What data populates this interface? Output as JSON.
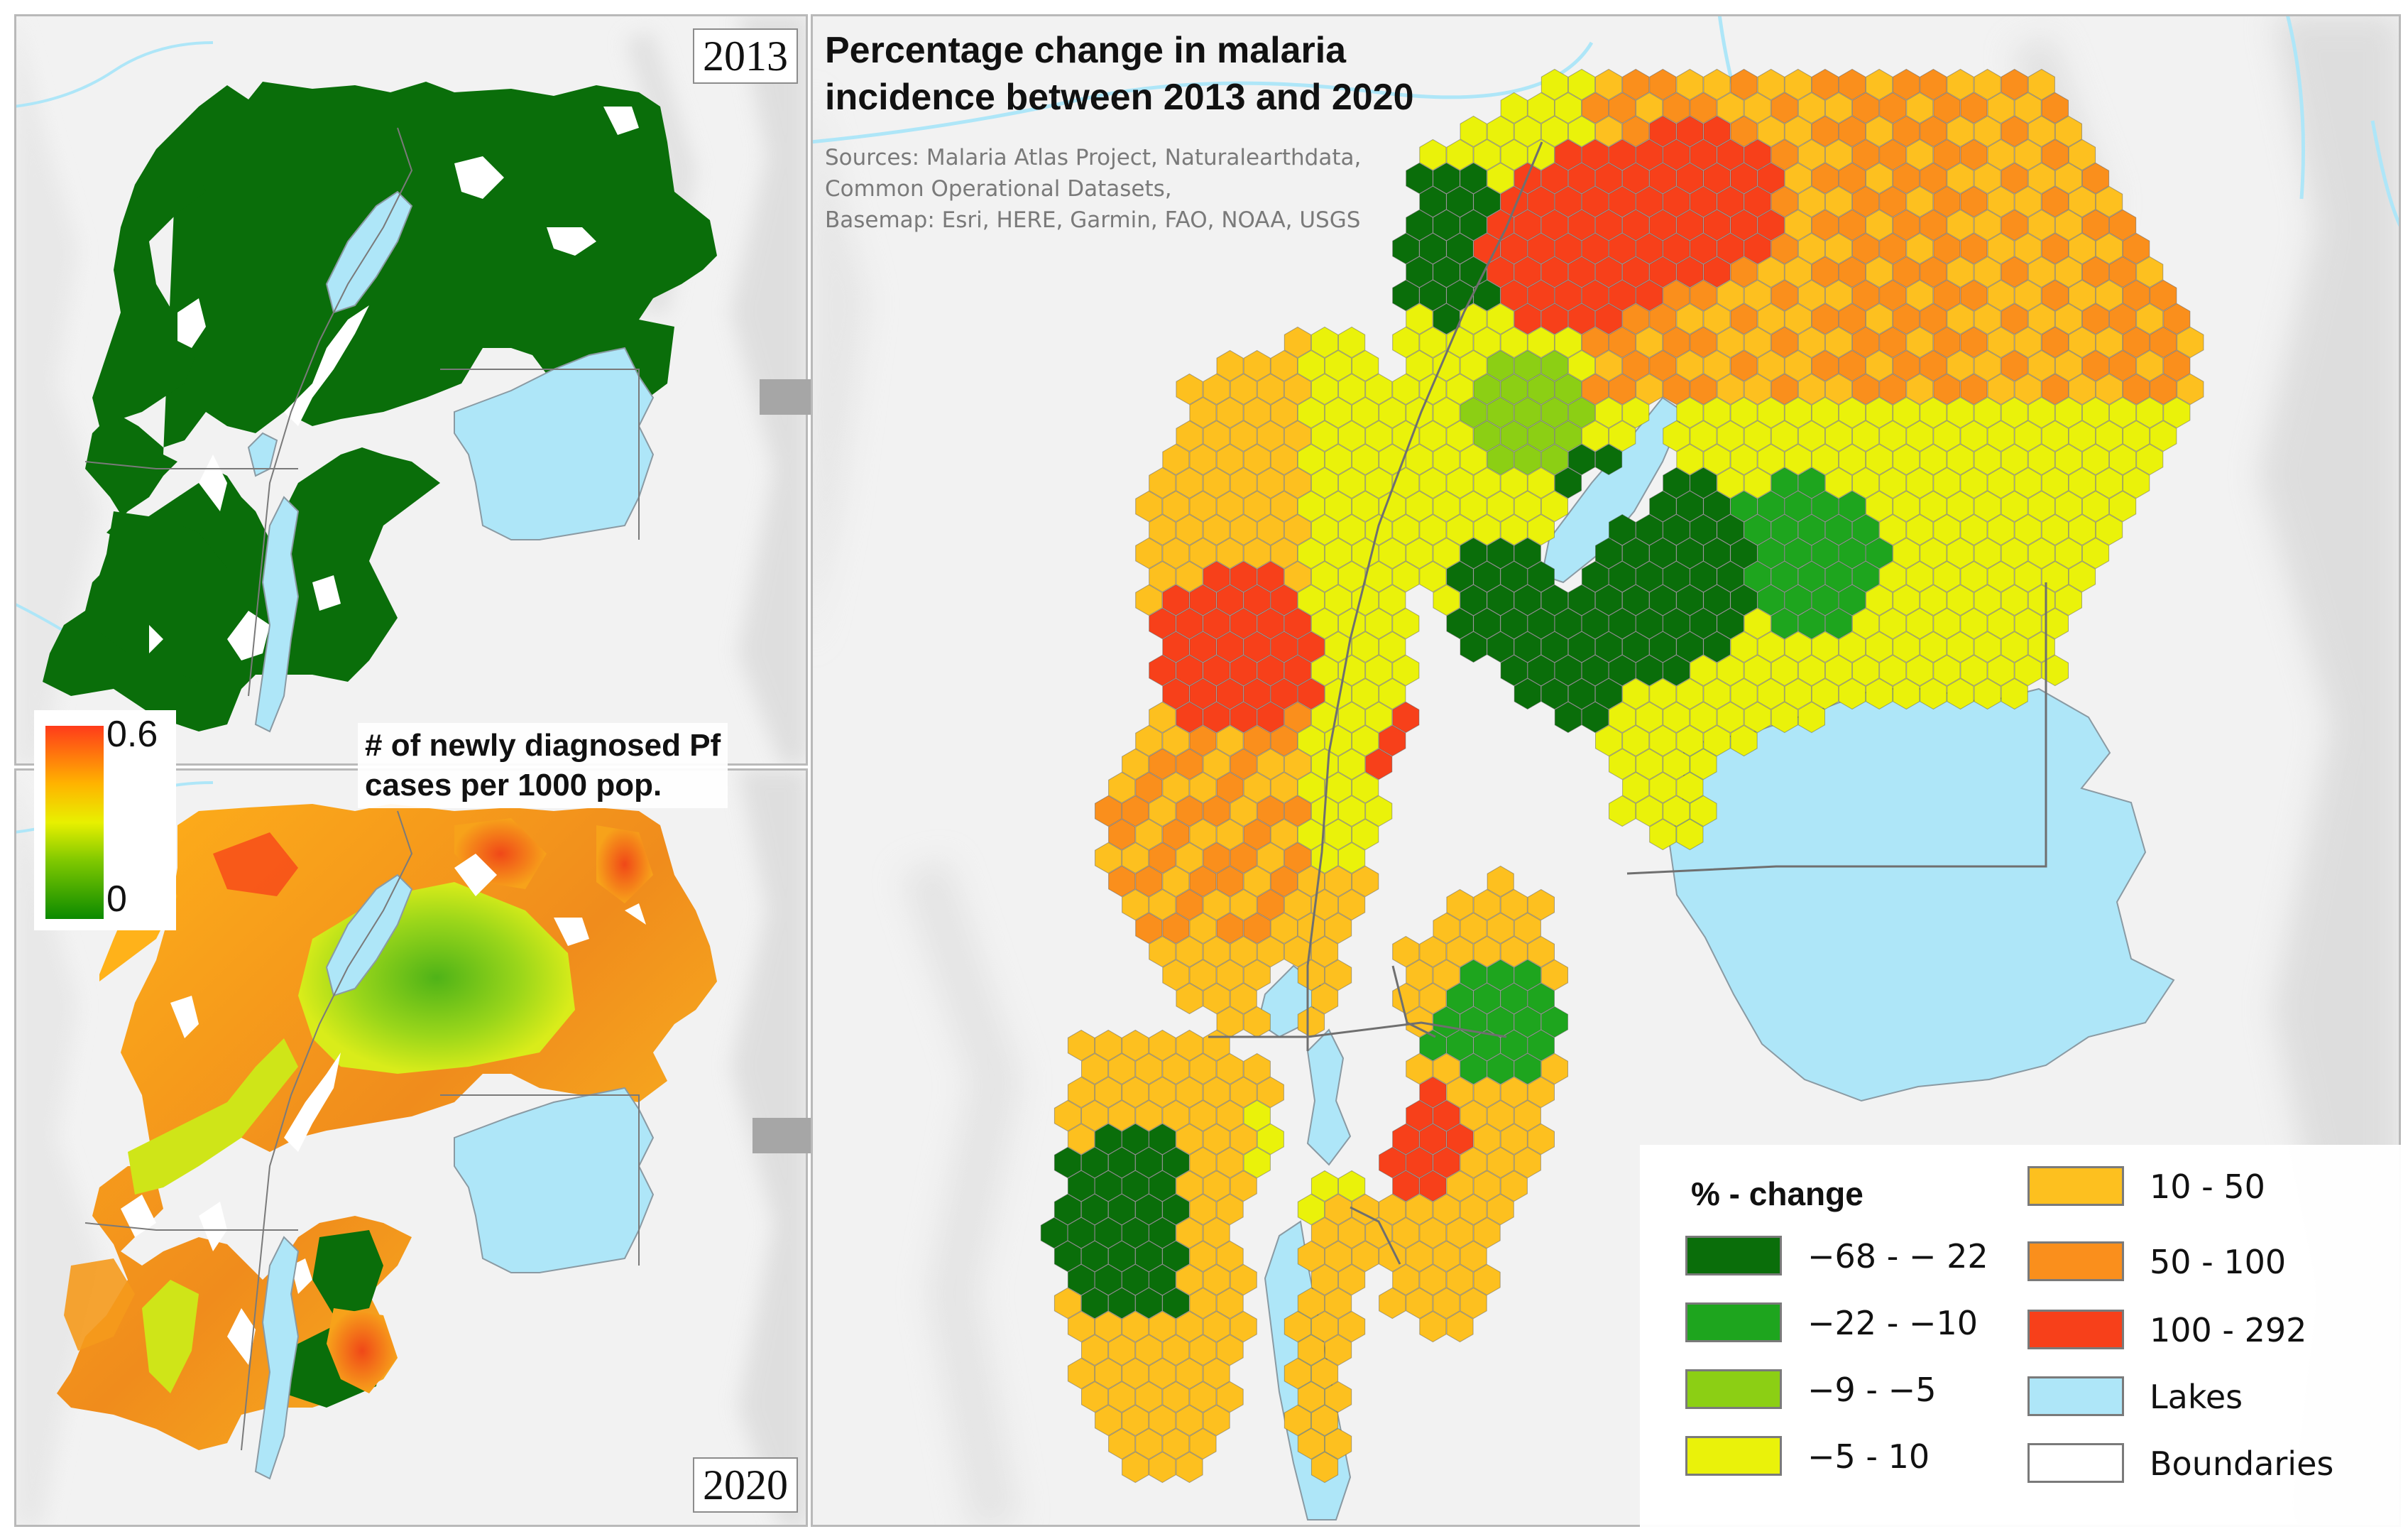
{
  "panels": {
    "top_year": "2013",
    "bottom_year": "2020"
  },
  "color_scale": {
    "max_label": "0.6",
    "min_label": "0",
    "min_value": 0,
    "max_value": 0.6,
    "title_line1": "# of newly diagnosed Pf",
    "title_line2": "cases per 1000 pop.",
    "colors": [
      "#0b8a00",
      "#7fc800",
      "#e8f000",
      "#ffb300",
      "#ff3b1a"
    ]
  },
  "main_map": {
    "title_line1": "Percentage change in malaria",
    "title_line2": "incidence between 2013 and 2020",
    "sources_line1": "Sources: Malaria Atlas Project, Naturalearthdata,",
    "sources_line2": "Common Operational Datasets,",
    "sources_line3": "Basemap: Esri, HERE, Garmin, FAO, NOAA, USGS"
  },
  "legend": {
    "title": "% - change",
    "items": [
      {
        "label": "−68 - − 22",
        "color": "#0a6e0a"
      },
      {
        "label": "−22 - −10",
        "color": "#1ea51e"
      },
      {
        "label": "−9 - −5",
        "color": "#8ccf14"
      },
      {
        "label": "−5 - 10",
        "color": "#eaf20a"
      },
      {
        "label": "10 - 50",
        "color": "#fdc01f"
      },
      {
        "label": "50 - 100",
        "color": "#fa8f1c"
      },
      {
        "label": "100 - 292",
        "color": "#f7401a"
      },
      {
        "label": "Lakes",
        "color": "#aee6f8"
      },
      {
        "label": "Boundaries",
        "color": "#ffffff"
      }
    ]
  },
  "colors": {
    "lake": "#aee6f8",
    "dark_green": "#0a6e0a",
    "basemap": "#f2f2f2",
    "arrow": "#a6a6a6"
  }
}
